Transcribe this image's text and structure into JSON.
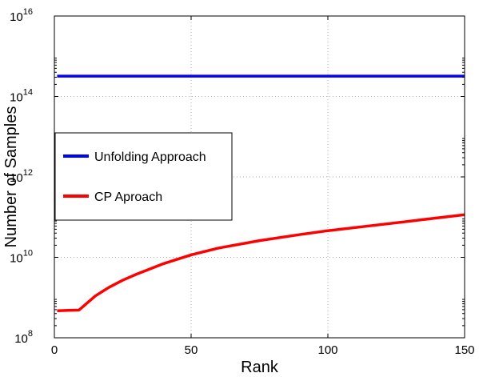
{
  "chart_data": {
    "type": "line",
    "xlabel": "Rank",
    "ylabel": "Number of Samples",
    "xlim": [
      0,
      150
    ],
    "ylim_exponent": [
      8,
      16
    ],
    "y_scale": "log",
    "grid": true,
    "legend_position": "center-left",
    "x_ticks": [
      "0",
      "50",
      "100",
      "150"
    ],
    "y_tick_base": "10",
    "y_tick_exponents": [
      "8",
      "10",
      "12",
      "14",
      "16"
    ],
    "series": [
      {
        "name": "Unfolding Approach",
        "color": "#0000ff",
        "x": [
          1,
          150
        ],
        "y": [
          320000000000000.0,
          320000000000000.0
        ]
      },
      {
        "name": "CP Aproach",
        "color": "#ff0000",
        "x": [
          1,
          5,
          9,
          10,
          15,
          20,
          25,
          30,
          40,
          50,
          60,
          75,
          90,
          100,
          120,
          135,
          150
        ],
        "y": [
          470000000.0,
          480000000.0,
          490000000.0,
          560000000.0,
          1100000000.0,
          1800000000.0,
          2700000000.0,
          3800000000.0,
          7000000000.0,
          11500000000.0,
          17000000000.0,
          26000000000.0,
          37000000000.0,
          46000000000.0,
          66000000000.0,
          87000000000.0,
          115000000000.0
        ]
      }
    ]
  }
}
